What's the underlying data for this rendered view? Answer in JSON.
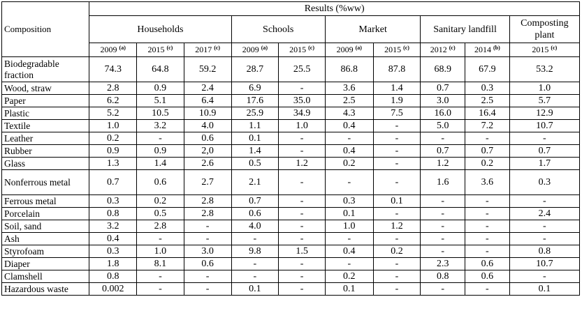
{
  "table": {
    "results_title": "Results (%ww)",
    "composition_header": "Composition",
    "groups": [
      {
        "label": "Households",
        "span": 3
      },
      {
        "label": "Schools",
        "span": 2
      },
      {
        "label": "Market",
        "span": 2
      },
      {
        "label": "Sanitary landfill",
        "span": 2
      },
      {
        "label": "Composting plant",
        "span": 1
      }
    ],
    "years": [
      {
        "year": "2009",
        "note": "(a)"
      },
      {
        "year": "2015",
        "note": "(c)"
      },
      {
        "year": "2017",
        "note": "(c)"
      },
      {
        "year": "2009",
        "note": "(a)"
      },
      {
        "year": "2015",
        "note": "(c)"
      },
      {
        "year": "2009",
        "note": "(a)"
      },
      {
        "year": "2015",
        "note": "(c)"
      },
      {
        "year": "2012",
        "note": "(c)"
      },
      {
        "year": "2014",
        "note": "(b)"
      },
      {
        "year": "2015",
        "note": "(c)"
      }
    ],
    "rows": [
      {
        "label": "Biodegradable fraction",
        "values": [
          "74.3",
          "64.8",
          "59.2",
          "28.7",
          "25.5",
          "86.8",
          "87.8",
          "68.9",
          "67.9",
          "53.2"
        ]
      },
      {
        "label": "Wood, straw",
        "values": [
          "2.8",
          "0.9",
          "2.4",
          "6.9",
          "-",
          "3.6",
          "1.4",
          "0.7",
          "0.3",
          "1.0"
        ]
      },
      {
        "label": "Paper",
        "values": [
          "6.2",
          "5.1",
          "6.4",
          "17.6",
          "35.0",
          "2.5",
          "1.9",
          "3.0",
          "2.5",
          "5.7"
        ]
      },
      {
        "label": "Plastic",
        "values": [
          "5.2",
          "10.5",
          "10.9",
          "25.9",
          "34.9",
          "4.3",
          "7.5",
          "16.0",
          "16.4",
          "12.9"
        ]
      },
      {
        "label": "Textile",
        "values": [
          "1.0",
          "3.2",
          "4.0",
          "1.1",
          "1.0",
          "0.4",
          "-",
          "5.0",
          "7.2",
          "10.7"
        ]
      },
      {
        "label": "Leather",
        "values": [
          "0.2",
          "-",
          "0.6",
          "0.1",
          "-",
          "-",
          "-",
          "-",
          "-",
          "-"
        ]
      },
      {
        "label": "Rubber",
        "values": [
          "0.9",
          "0.9",
          "2,0",
          "1.4",
          "-",
          "0.4",
          "-",
          "0.7",
          "0.7",
          "0.7"
        ]
      },
      {
        "label": "Glass",
        "values": [
          "1.3",
          "1.4",
          "2.6",
          "0.5",
          "1.2",
          "0.2",
          "-",
          "1.2",
          "0.2",
          "1.7"
        ]
      },
      {
        "label": "Nonferrous metal",
        "values": [
          "0.7",
          "0.6",
          "2.7",
          "2.1",
          "-",
          "-",
          "-",
          "1.6",
          "3.6",
          "0.3"
        ]
      },
      {
        "label": "Ferrous metal",
        "values": [
          "0.3",
          "0.2",
          "2.8",
          "0.7",
          "-",
          "0.3",
          "0.1",
          "-",
          "-",
          "-"
        ]
      },
      {
        "label": "Porcelain",
        "values": [
          "0.8",
          "0.5",
          "2.8",
          "0.6",
          "-",
          "0.1",
          "-",
          "-",
          "-",
          "2.4"
        ]
      },
      {
        "label": "Soil, sand",
        "values": [
          "3.2",
          "2.8",
          "-",
          "4.0",
          "-",
          "1.0",
          "1.2",
          "-",
          "-",
          "-"
        ]
      },
      {
        "label": "Ash",
        "values": [
          "0.4",
          "-",
          "-",
          "-",
          "-",
          "-",
          "-",
          "-",
          "-",
          "-"
        ]
      },
      {
        "label": "Styrofoam",
        "values": [
          "0.3",
          "1.0",
          "3.0",
          "9.8",
          "1.5",
          "0.4",
          "0.2",
          "-",
          "-",
          "0.8"
        ]
      },
      {
        "label": "Diaper",
        "values": [
          "1.8",
          "8.1",
          "0.6",
          "-",
          "-",
          "-",
          "-",
          "2.3",
          "0.6",
          "10.7"
        ]
      },
      {
        "label": "Clamshell",
        "values": [
          "0.8",
          "-",
          "-",
          "-",
          "-",
          "0.2",
          "-",
          "0.8",
          "0.6",
          "-"
        ]
      },
      {
        "label": "Hazardous waste",
        "values": [
          "0.002",
          "-",
          "-",
          "0.1",
          "-",
          "0.1",
          "-",
          "-",
          "-",
          "0.1"
        ]
      }
    ]
  }
}
